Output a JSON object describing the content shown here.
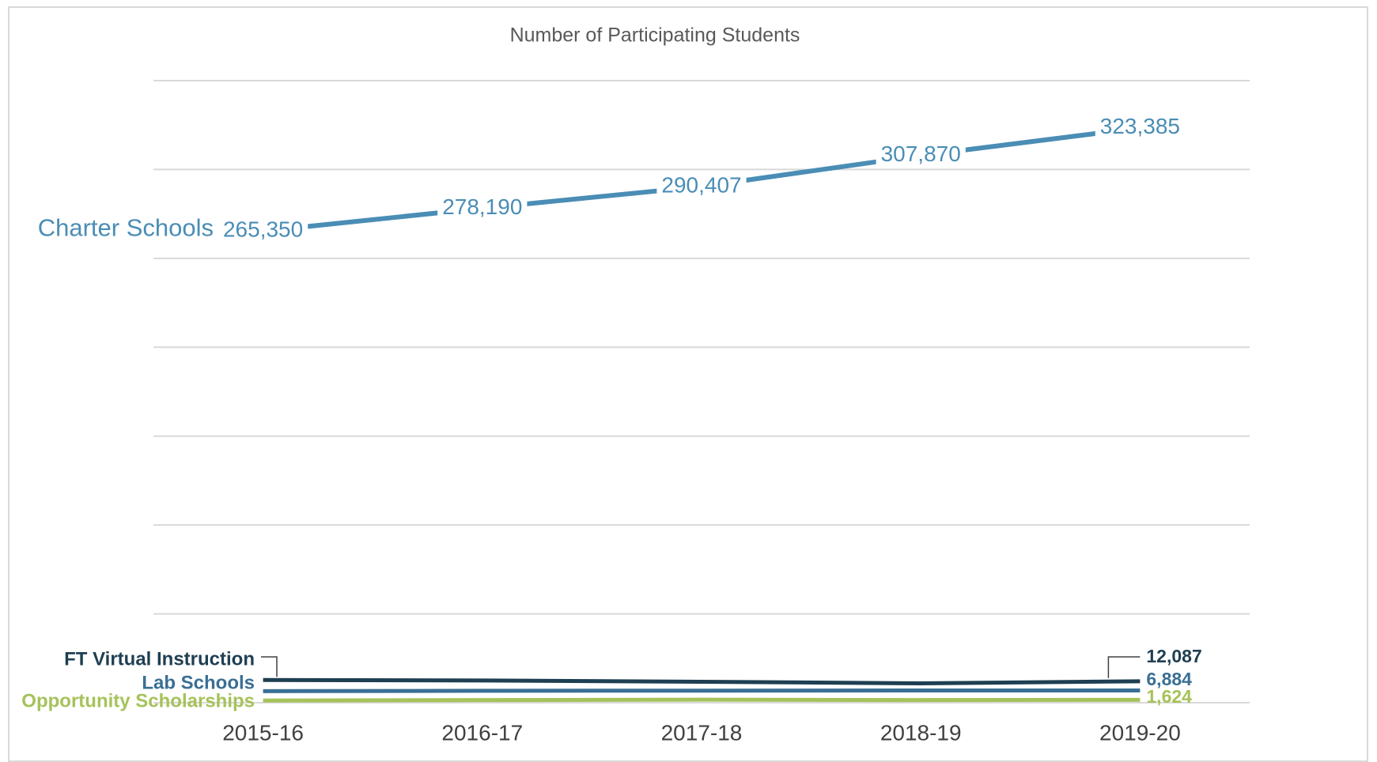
{
  "chart_data": {
    "type": "line",
    "title": "Number of Participating Students",
    "categories": [
      "2015-16",
      "2016-17",
      "2017-18",
      "2018-19",
      "2019-20"
    ],
    "series": [
      {
        "name": "Charter Schools",
        "color": "#4a8db5",
        "values": [
          265350,
          278190,
          290407,
          307870,
          323385
        ],
        "value_labels": [
          "265,350",
          "278,190",
          "290,407",
          "307,870",
          "323,385"
        ]
      },
      {
        "name": "FT Virtual Instruction",
        "color": "#1f3f52",
        "values": [
          12800,
          12500,
          11800,
          10900,
          12087
        ],
        "value_labels": [
          null,
          null,
          null,
          null,
          "12,087"
        ]
      },
      {
        "name": "Lab Schools",
        "color": "#3a6f95",
        "values": [
          6500,
          6700,
          6800,
          6900,
          6884
        ],
        "value_labels": [
          null,
          null,
          null,
          null,
          "6,884"
        ]
      },
      {
        "name": "Opportunity Scholarships",
        "color": "#a6c25a",
        "values": [
          1200,
          1500,
          1700,
          1500,
          1624
        ],
        "value_labels": [
          null,
          null,
          null,
          null,
          "1,624"
        ]
      }
    ],
    "ylim": [
      0,
      350000
    ],
    "yticks": [
      0,
      50000,
      100000,
      150000,
      200000,
      250000,
      300000,
      350000
    ],
    "grid": true
  }
}
